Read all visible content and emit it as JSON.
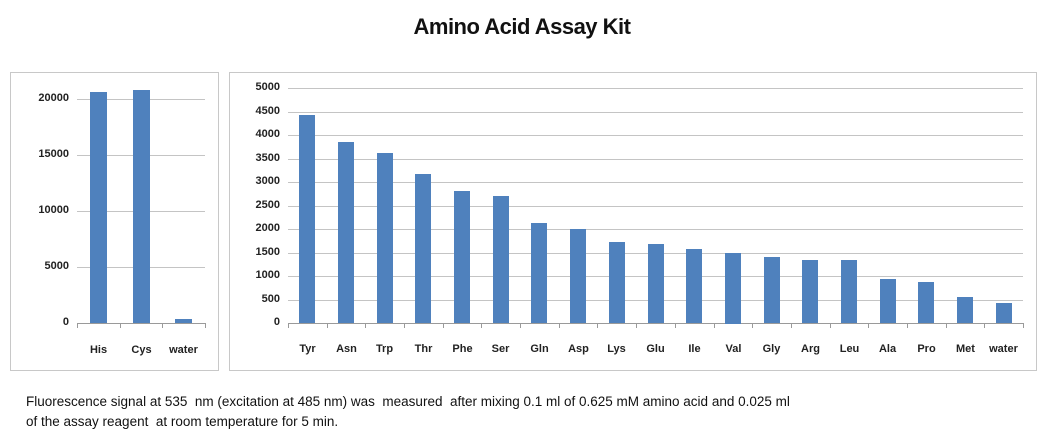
{
  "title": "Amino Acid Assay Kit",
  "caption": {
    "line1": "Fluorescence signal at 535  nm (excitation at 485 nm) was  measured  after mixing 0.1 ml of 0.625 mM amino acid and 0.025 ml",
    "line2": "of the assay reagent  at room temperature for 5 min."
  },
  "colors": {
    "bar": "#4f81bd",
    "grid": "#c4c4c4",
    "border": "#c8c8c8"
  },
  "chart_data": [
    {
      "type": "bar",
      "title": "",
      "xlabel": "",
      "ylabel": "",
      "categories": [
        "His",
        "Cys",
        "water"
      ],
      "values": [
        20600,
        20800,
        400
      ],
      "yticks": [
        "0",
        "5000",
        "10000",
        "15000",
        "20000"
      ],
      "ylim": [
        0,
        20000
      ],
      "grid": true,
      "legend": "none"
    },
    {
      "type": "bar",
      "title": "",
      "xlabel": "",
      "ylabel": "",
      "categories": [
        "Tyr",
        "Asn",
        "Trp",
        "Thr",
        "Phe",
        "Ser",
        "Gln",
        "Asp",
        "Lys",
        "Glu",
        "Ile",
        "Val",
        "Gly",
        "Arg",
        "Leu",
        "Ala",
        "Pro",
        "Met",
        "water"
      ],
      "values": [
        4420,
        3860,
        3620,
        3180,
        2800,
        2710,
        2120,
        2000,
        1720,
        1690,
        1580,
        1500,
        1400,
        1350,
        1330,
        930,
        870,
        560,
        430
      ],
      "yticks": [
        "0",
        "500",
        "1000",
        "1500",
        "2000",
        "2500",
        "3000",
        "3500",
        "4000",
        "4500",
        "5000"
      ],
      "ylim": [
        0,
        5000
      ],
      "grid": true,
      "legend": "none"
    }
  ]
}
